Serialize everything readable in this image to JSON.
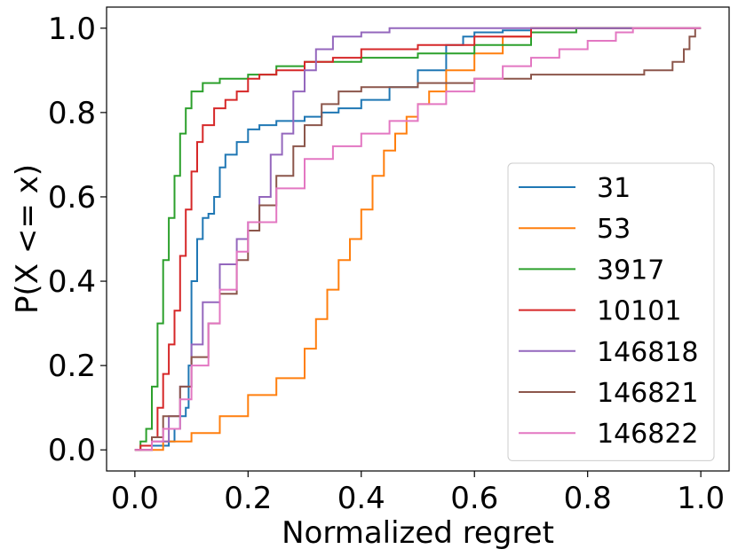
{
  "chart_data": {
    "type": "line",
    "style": "ecdf-step",
    "title": "",
    "xlabel": "Normalized regret",
    "ylabel": "P(X <= x)",
    "xlim": [
      -0.05,
      1.05
    ],
    "ylim": [
      -0.05,
      1.05
    ],
    "xticks": [
      0.0,
      0.2,
      0.4,
      0.6,
      0.8,
      1.0
    ],
    "xtick_labels": [
      "0.0",
      "0.2",
      "0.4",
      "0.6",
      "0.8",
      "1.0"
    ],
    "yticks": [
      0.0,
      0.2,
      0.4,
      0.6,
      0.8,
      1.0
    ],
    "ytick_labels": [
      "0.0",
      "0.2",
      "0.4",
      "0.6",
      "0.8",
      "1.0"
    ],
    "grid": false,
    "legend_position": "lower-right",
    "series": [
      {
        "name": "31",
        "color": "#1f77b4",
        "x": [
          0.0,
          0.03,
          0.06,
          0.07,
          0.08,
          0.09,
          0.095,
          0.1,
          0.11,
          0.12,
          0.13,
          0.14,
          0.15,
          0.16,
          0.18,
          0.2,
          0.22,
          0.25,
          0.28,
          0.3,
          0.33,
          0.36,
          0.4,
          0.45,
          0.5,
          0.55,
          0.58,
          0.6,
          0.65,
          0.7,
          1.0
        ],
        "y": [
          0.0,
          0.01,
          0.02,
          0.05,
          0.08,
          0.1,
          0.2,
          0.4,
          0.5,
          0.55,
          0.56,
          0.6,
          0.67,
          0.7,
          0.73,
          0.76,
          0.77,
          0.78,
          0.78,
          0.79,
          0.8,
          0.81,
          0.83,
          0.86,
          0.9,
          0.96,
          0.98,
          0.99,
          0.995,
          1.0,
          1.0
        ]
      },
      {
        "name": "53",
        "color": "#ff7f0e",
        "x": [
          0.0,
          0.05,
          0.1,
          0.15,
          0.2,
          0.25,
          0.3,
          0.32,
          0.34,
          0.36,
          0.38,
          0.4,
          0.42,
          0.44,
          0.46,
          0.48,
          0.5,
          0.52,
          0.55,
          0.6,
          0.65,
          0.7,
          1.0
        ],
        "y": [
          0.0,
          0.02,
          0.04,
          0.08,
          0.13,
          0.17,
          0.24,
          0.31,
          0.38,
          0.45,
          0.5,
          0.57,
          0.65,
          0.71,
          0.75,
          0.79,
          0.82,
          0.85,
          0.9,
          0.94,
          0.98,
          1.0,
          1.0
        ]
      },
      {
        "name": "3917",
        "color": "#2ca02c",
        "x": [
          0.0,
          0.01,
          0.02,
          0.03,
          0.04,
          0.05,
          0.06,
          0.07,
          0.08,
          0.09,
          0.1,
          0.12,
          0.15,
          0.2,
          0.25,
          0.3,
          0.4,
          0.5,
          0.6,
          0.7,
          0.78,
          1.0
        ],
        "y": [
          0.0,
          0.02,
          0.05,
          0.15,
          0.3,
          0.45,
          0.55,
          0.65,
          0.75,
          0.81,
          0.85,
          0.87,
          0.88,
          0.89,
          0.91,
          0.92,
          0.93,
          0.94,
          0.96,
          0.99,
          1.0,
          1.0
        ]
      },
      {
        "name": "10101",
        "color": "#d62728",
        "x": [
          0.0,
          0.01,
          0.03,
          0.04,
          0.05,
          0.06,
          0.07,
          0.08,
          0.09,
          0.1,
          0.11,
          0.12,
          0.14,
          0.16,
          0.18,
          0.2,
          0.22,
          0.25,
          0.3,
          0.35,
          0.4,
          0.5,
          0.6,
          0.7,
          1.0
        ],
        "y": [
          0.0,
          0.01,
          0.03,
          0.1,
          0.18,
          0.25,
          0.33,
          0.46,
          0.57,
          0.66,
          0.73,
          0.77,
          0.81,
          0.83,
          0.85,
          0.88,
          0.89,
          0.9,
          0.92,
          0.93,
          0.95,
          0.96,
          0.98,
          1.0,
          1.0
        ]
      },
      {
        "name": "146818",
        "color": "#9467bd",
        "x": [
          0.0,
          0.03,
          0.06,
          0.08,
          0.1,
          0.12,
          0.15,
          0.18,
          0.2,
          0.22,
          0.24,
          0.26,
          0.28,
          0.3,
          0.32,
          0.35,
          0.4,
          0.45,
          0.5,
          1.0
        ],
        "y": [
          0.0,
          0.02,
          0.08,
          0.15,
          0.25,
          0.35,
          0.44,
          0.5,
          0.54,
          0.6,
          0.7,
          0.75,
          0.85,
          0.9,
          0.95,
          0.98,
          0.99,
          1.0,
          1.0,
          1.0
        ]
      },
      {
        "name": "146821",
        "color": "#8c564b",
        "x": [
          0.0,
          0.03,
          0.05,
          0.08,
          0.1,
          0.13,
          0.15,
          0.18,
          0.2,
          0.22,
          0.25,
          0.28,
          0.3,
          0.33,
          0.36,
          0.4,
          0.5,
          0.6,
          0.7,
          0.8,
          0.9,
          0.95,
          0.97,
          0.98,
          0.99
        ],
        "y": [
          0.0,
          0.03,
          0.08,
          0.15,
          0.22,
          0.3,
          0.37,
          0.45,
          0.52,
          0.58,
          0.65,
          0.72,
          0.77,
          0.82,
          0.85,
          0.86,
          0.87,
          0.88,
          0.89,
          0.89,
          0.9,
          0.92,
          0.95,
          0.98,
          1.0
        ]
      },
      {
        "name": "146822",
        "color": "#e377c2",
        "x": [
          0.0,
          0.03,
          0.05,
          0.08,
          0.1,
          0.13,
          0.15,
          0.18,
          0.2,
          0.25,
          0.3,
          0.35,
          0.4,
          0.45,
          0.5,
          0.55,
          0.6,
          0.65,
          0.7,
          0.75,
          0.8,
          0.85,
          0.88,
          1.0
        ],
        "y": [
          0.0,
          0.02,
          0.05,
          0.12,
          0.2,
          0.3,
          0.38,
          0.47,
          0.54,
          0.62,
          0.69,
          0.72,
          0.75,
          0.78,
          0.82,
          0.85,
          0.88,
          0.91,
          0.93,
          0.95,
          0.97,
          0.99,
          1.0,
          1.0
        ]
      }
    ]
  }
}
